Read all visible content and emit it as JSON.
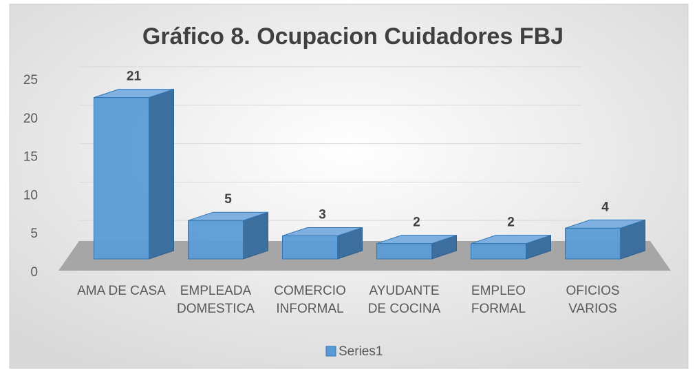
{
  "chart_data": {
    "type": "bar3d",
    "title": "Gráfico 8. Ocupacion Cuidadores FBJ",
    "categories": [
      "AMA DE CASA",
      "EMPLEADA DOMESTICA",
      "COMERCIO INFORMAL",
      "AYUDANTE DE COCINA",
      "EMPLEO FORMAL",
      "OFICIOS VARIOS"
    ],
    "series": [
      {
        "name": "Series1",
        "color": "#5b9bd5",
        "values": [
          21,
          5,
          3,
          2,
          2,
          4
        ]
      }
    ],
    "ylim": [
      0,
      25
    ],
    "yticks": [
      0,
      5,
      10,
      15,
      20,
      25
    ],
    "grid": true,
    "legend": "bottom"
  }
}
